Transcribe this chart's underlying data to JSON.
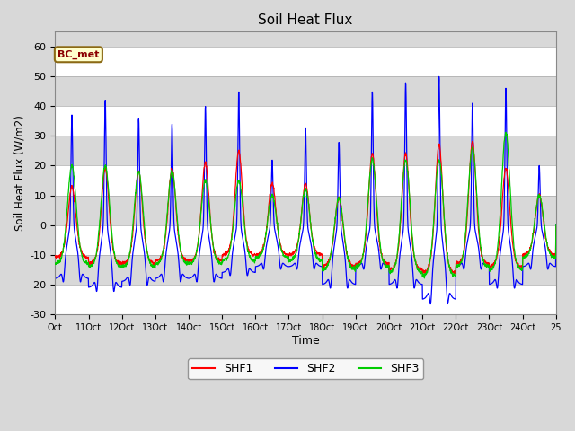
{
  "title": "Soil Heat Flux",
  "xlabel": "Time",
  "ylabel": "Soil Heat Flux (W/m2)",
  "ylim": [
    -30,
    65
  ],
  "yticks": [
    -30,
    -20,
    -10,
    0,
    10,
    20,
    30,
    40,
    50,
    60
  ],
  "annotation_text": "BC_met",
  "colors": {
    "SHF1": "#FF0000",
    "SHF2": "#0000FF",
    "SHF3": "#00CC00"
  },
  "bg_color": "#D8D8D8",
  "band_light": "#FFFFFF",
  "band_dark": "#D8D8D8",
  "n_days": 15,
  "start_day": 10,
  "shf2_day_peaks": [
    37,
    42,
    36,
    34,
    40,
    45,
    22,
    33,
    28,
    45,
    48,
    50,
    41,
    46,
    20
  ],
  "shf2_night_troughs": [
    -18,
    -21,
    -19,
    -18,
    -18,
    -16,
    -14,
    -14,
    -20,
    -14,
    -20,
    -25,
    -14,
    -20,
    -14
  ],
  "shf1_day_peaks": [
    13,
    19,
    18,
    19,
    21,
    25,
    14,
    14,
    9,
    24,
    24,
    27,
    28,
    19,
    10
  ],
  "shf1_night_troughs": [
    -11,
    -13,
    -13,
    -12,
    -12,
    -10,
    -10,
    -10,
    -14,
    -13,
    -15,
    -16,
    -13,
    -14,
    -10
  ],
  "shf3_day_peaks": [
    20,
    20,
    18,
    18,
    15,
    15,
    10,
    12,
    9,
    22,
    22,
    22,
    26,
    31,
    10
  ],
  "shf3_night_troughs": [
    -13,
    -14,
    -14,
    -13,
    -13,
    -12,
    -11,
    -12,
    -15,
    -14,
    -16,
    -17,
    -14,
    -15,
    -11
  ]
}
